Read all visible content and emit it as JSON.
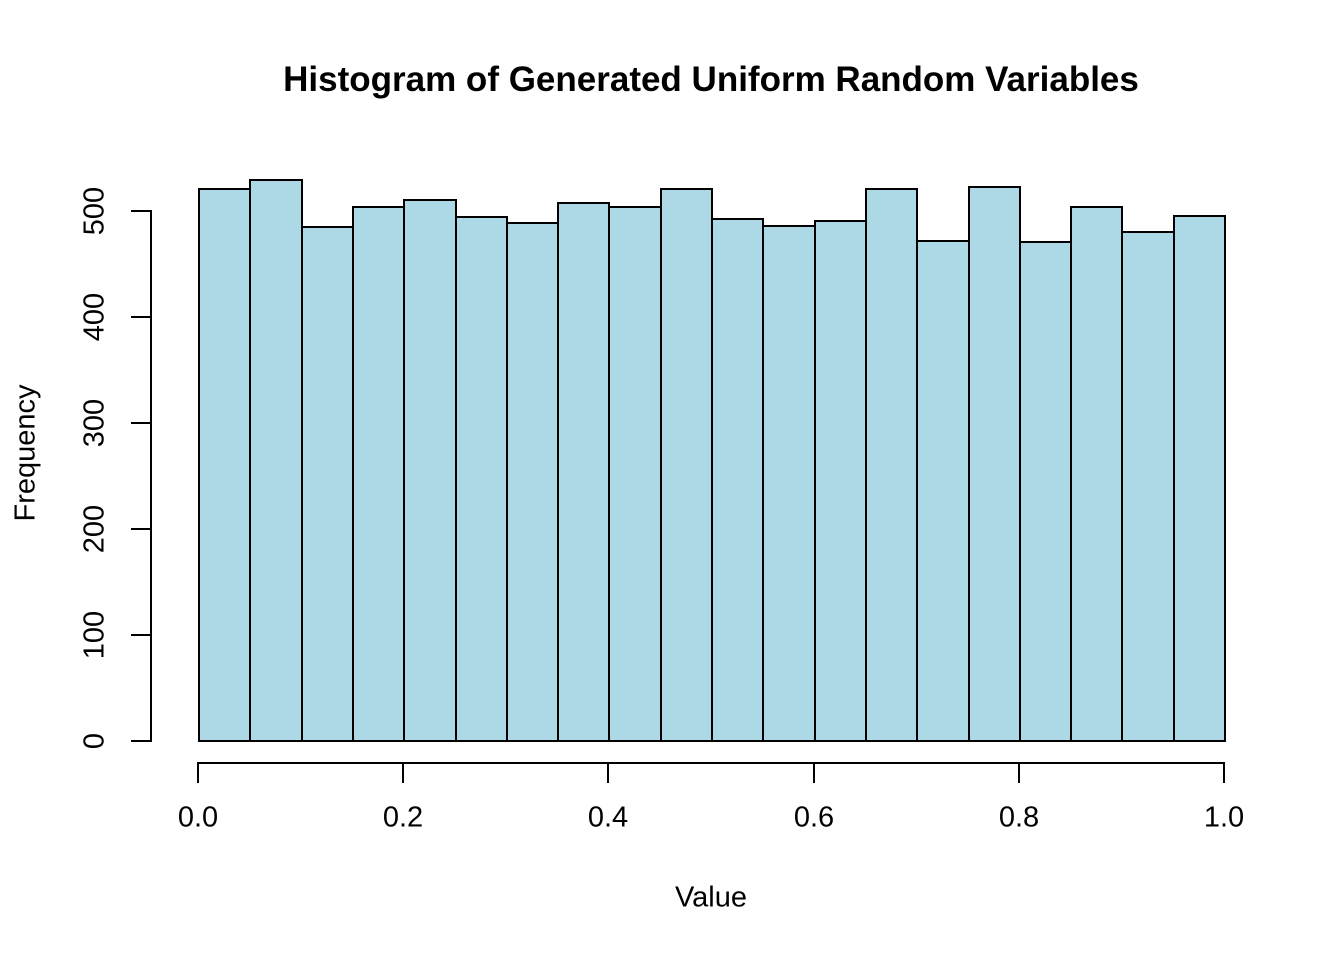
{
  "chart_data": {
    "type": "bar",
    "chart_kind": "histogram",
    "title": "Histogram of Generated Uniform Random Variables",
    "xlabel": "Value",
    "ylabel": "Frequency",
    "xlim": [
      0.0,
      1.0
    ],
    "ylim": [
      0,
      500
    ],
    "bin_start": 0.0,
    "bin_width": 0.05,
    "bin_edges": [
      0.0,
      0.05,
      0.1,
      0.15,
      0.2,
      0.25,
      0.3,
      0.35,
      0.4,
      0.45,
      0.5,
      0.55,
      0.6,
      0.65,
      0.7,
      0.75,
      0.8,
      0.85,
      0.9,
      0.95,
      1.0
    ],
    "counts": [
      521,
      529,
      485,
      504,
      510,
      494,
      489,
      508,
      504,
      521,
      492,
      486,
      491,
      521,
      472,
      523,
      471,
      504,
      480,
      495
    ],
    "x_tick_values": [
      0.0,
      0.2,
      0.4,
      0.6,
      0.8,
      1.0
    ],
    "x_tick_labels": [
      "0.0",
      "0.2",
      "0.4",
      "0.6",
      "0.8",
      "1.0"
    ],
    "y_tick_values": [
      0,
      100,
      200,
      300,
      400,
      500
    ],
    "y_tick_labels": [
      "0",
      "100",
      "200",
      "300",
      "400",
      "500"
    ],
    "grid": false,
    "legend": false,
    "colors": {
      "bar_fill": "#ADD8E6",
      "bar_border": "#000000",
      "axis": "#000000",
      "text": "#000000",
      "background": "#FFFFFF"
    }
  }
}
